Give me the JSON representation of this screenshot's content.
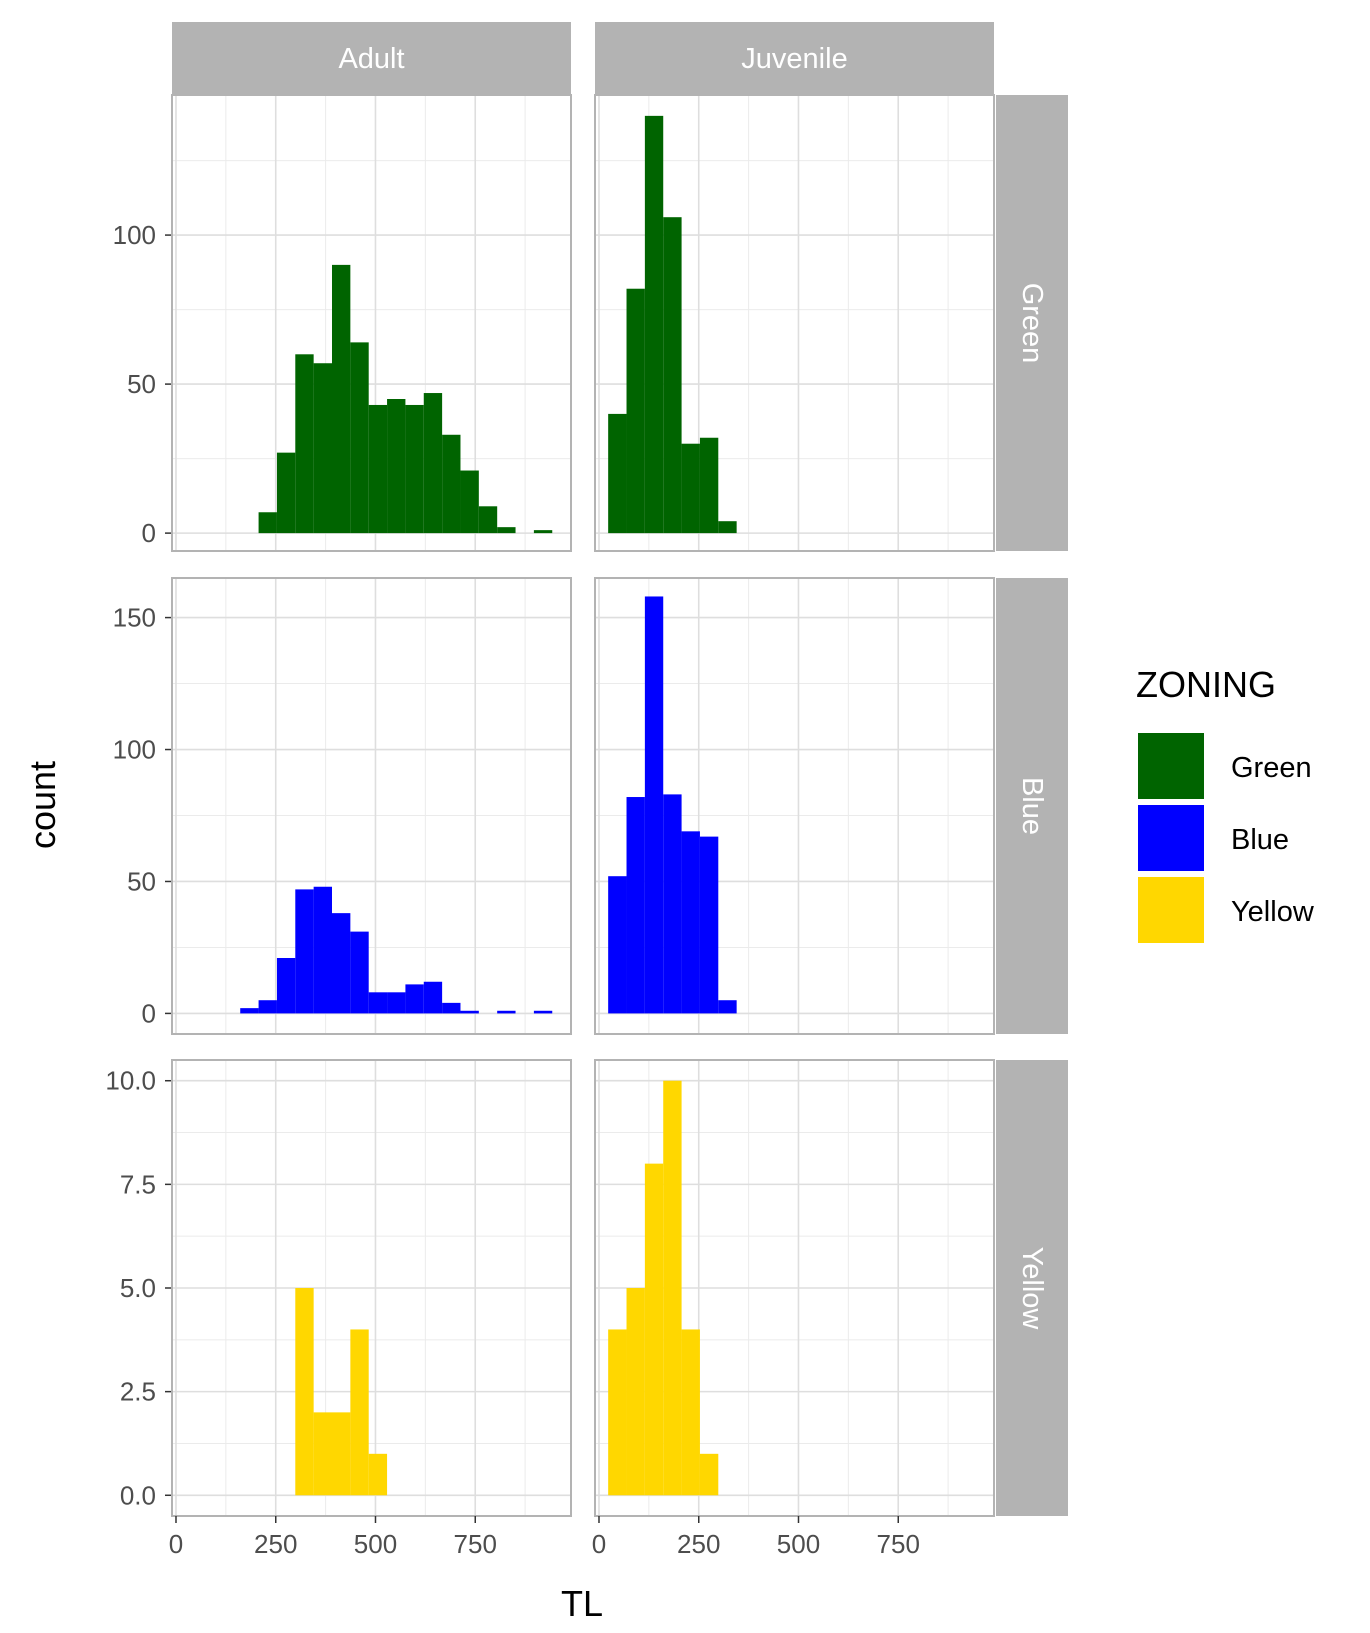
{
  "chart_data": {
    "type": "bar",
    "subtype": "faceted-histogram",
    "xlabel": "TL",
    "ylabel": "count",
    "col_facets": [
      "Adult",
      "Juvenile"
    ],
    "row_facets": [
      "Green",
      "Blue",
      "Yellow"
    ],
    "xlim": [
      -10,
      990
    ],
    "x_ticks": [
      0,
      250,
      500,
      750
    ],
    "x_tick_labels": [
      "0",
      "250",
      "500",
      "750"
    ],
    "bin_width": 46,
    "grid": true,
    "legend": {
      "title": "ZONING",
      "position": "right",
      "entries": [
        {
          "name": "Green",
          "color": "#006400"
        },
        {
          "name": "Blue",
          "color": "#0000ff"
        },
        {
          "name": "Yellow",
          "color": "#ffd700"
        }
      ]
    },
    "rows": [
      {
        "name": "Green",
        "color": "#006400",
        "ylim": [
          -6,
          147
        ],
        "y_ticks": [
          0,
          50,
          100
        ],
        "y_tick_labels": [
          "0",
          "50",
          "100"
        ],
        "panels": [
          {
            "facet": "Adult",
            "bins": [
              {
                "x0": 207,
                "count": 7
              },
              {
                "x0": 253,
                "count": 27
              },
              {
                "x0": 299,
                "count": 60
              },
              {
                "x0": 345,
                "count": 57
              },
              {
                "x0": 391,
                "count": 90
              },
              {
                "x0": 437,
                "count": 64
              },
              {
                "x0": 483,
                "count": 43
              },
              {
                "x0": 529,
                "count": 45
              },
              {
                "x0": 575,
                "count": 43
              },
              {
                "x0": 621,
                "count": 47
              },
              {
                "x0": 667,
                "count": 33
              },
              {
                "x0": 713,
                "count": 21
              },
              {
                "x0": 759,
                "count": 9
              },
              {
                "x0": 805,
                "count": 2
              },
              {
                "x0": 897,
                "count": 1
              }
            ]
          },
          {
            "facet": "Juvenile",
            "bins": [
              {
                "x0": 23,
                "count": 40
              },
              {
                "x0": 69,
                "count": 82
              },
              {
                "x0": 115,
                "count": 140
              },
              {
                "x0": 161,
                "count": 106
              },
              {
                "x0": 207,
                "count": 30
              },
              {
                "x0": 253,
                "count": 32
              },
              {
                "x0": 299,
                "count": 4
              }
            ]
          }
        ]
      },
      {
        "name": "Blue",
        "color": "#0000ff",
        "ylim": [
          -7.8,
          165
        ],
        "y_ticks": [
          0,
          50,
          100,
          150
        ],
        "y_tick_labels": [
          "0",
          "50",
          "100",
          "150"
        ],
        "panels": [
          {
            "facet": "Adult",
            "bins": [
              {
                "x0": 161,
                "count": 2
              },
              {
                "x0": 207,
                "count": 5
              },
              {
                "x0": 253,
                "count": 21
              },
              {
                "x0": 299,
                "count": 47
              },
              {
                "x0": 345,
                "count": 48
              },
              {
                "x0": 391,
                "count": 38
              },
              {
                "x0": 437,
                "count": 31
              },
              {
                "x0": 483,
                "count": 8
              },
              {
                "x0": 529,
                "count": 8
              },
              {
                "x0": 575,
                "count": 11
              },
              {
                "x0": 621,
                "count": 12
              },
              {
                "x0": 667,
                "count": 4
              },
              {
                "x0": 713,
                "count": 1
              },
              {
                "x0": 805,
                "count": 1
              },
              {
                "x0": 897,
                "count": 1
              }
            ]
          },
          {
            "facet": "Juvenile",
            "bins": [
              {
                "x0": 23,
                "count": 52
              },
              {
                "x0": 69,
                "count": 82
              },
              {
                "x0": 115,
                "count": 158
              },
              {
                "x0": 161,
                "count": 83
              },
              {
                "x0": 207,
                "count": 69
              },
              {
                "x0": 253,
                "count": 67
              },
              {
                "x0": 299,
                "count": 5
              }
            ]
          }
        ]
      },
      {
        "name": "Yellow",
        "color": "#ffd700",
        "ylim": [
          -0.5,
          10.5
        ],
        "y_ticks": [
          0,
          2.5,
          5,
          7.5,
          10
        ],
        "y_tick_labels": [
          "0.0",
          "2.5",
          "5.0",
          "7.5",
          "10.0"
        ],
        "panels": [
          {
            "facet": "Adult",
            "bins": [
              {
                "x0": 299,
                "count": 5
              },
              {
                "x0": 345,
                "count": 2
              },
              {
                "x0": 391,
                "count": 2
              },
              {
                "x0": 437,
                "count": 4
              },
              {
                "x0": 483,
                "count": 1
              }
            ]
          },
          {
            "facet": "Juvenile",
            "bins": [
              {
                "x0": 23,
                "count": 4
              },
              {
                "x0": 69,
                "count": 5
              },
              {
                "x0": 115,
                "count": 8
              },
              {
                "x0": 161,
                "count": 10
              },
              {
                "x0": 207,
                "count": 4
              },
              {
                "x0": 253,
                "count": 1
              }
            ]
          }
        ]
      }
    ]
  }
}
